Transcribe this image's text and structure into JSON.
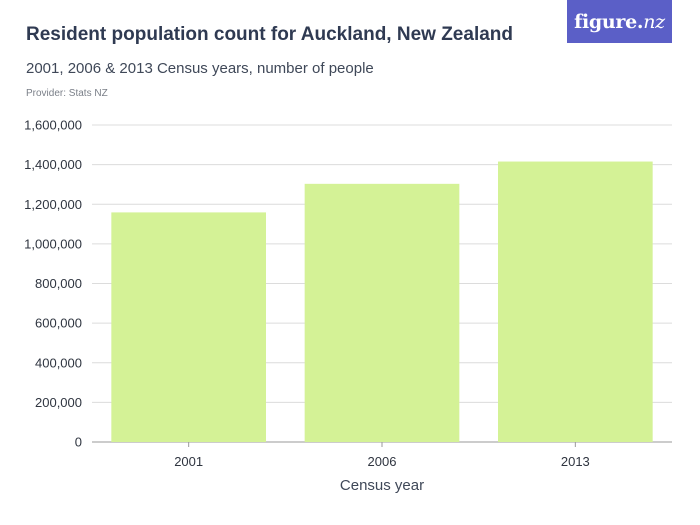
{
  "header": {
    "title": "Resident population count for Auckland, New Zealand",
    "subtitle": "2001, 2006 & 2013 Census years, number of people",
    "provider": "Provider: Stats NZ"
  },
  "logo": {
    "text_main": "figure.",
    "text_accent": "nz",
    "bg_color": "#5b5fc7"
  },
  "chart_data": {
    "type": "bar",
    "categories": [
      "2001",
      "2006",
      "2013"
    ],
    "values": [
      1158891,
      1303068,
      1415550
    ],
    "xlabel": "Census year",
    "ylabel": "",
    "ylim": [
      0,
      1600000
    ],
    "yticks": [
      0,
      200000,
      400000,
      600000,
      800000,
      1000000,
      1200000,
      1400000,
      1600000
    ],
    "ytick_labels": [
      "0",
      "200,000",
      "400,000",
      "600,000",
      "800,000",
      "1,000,000",
      "1,200,000",
      "1,400,000",
      "1,600,000"
    ],
    "grid": true,
    "legend": "none",
    "bar_color": "#d4f296",
    "grid_color": "#dcdcdc"
  }
}
